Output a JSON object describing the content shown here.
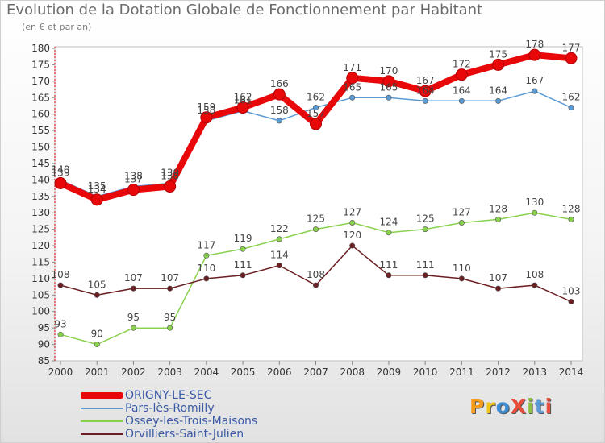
{
  "header": {
    "title": "Evolution de la Dotation Globale de Fonctionnement par Habitant",
    "subtitle": "(en € et par an)"
  },
  "logo": {
    "text": "ProXiti",
    "letters": [
      "P",
      "r",
      "o",
      "X",
      "i",
      "t",
      "i"
    ],
    "colors": [
      "#f59a1c",
      "#f2c319",
      "#3b8fd8",
      "#e94e3a",
      "#8cbf3f",
      "#5a9ad6",
      "#e94e3a"
    ]
  },
  "chart_data": {
    "type": "line",
    "title": "Evolution de la Dotation Globale de Fonctionnement par Habitant",
    "subtitle": "(en € et par an)",
    "xlabel": "",
    "ylabel": "",
    "x": [
      "2000",
      "2001",
      "2002",
      "2003",
      "2004",
      "2005",
      "2006",
      "2007",
      "2008",
      "2009",
      "2010",
      "2011",
      "2012",
      "2013",
      "2014"
    ],
    "ylim": [
      85,
      180
    ],
    "yticks": [
      85,
      90,
      95,
      100,
      105,
      110,
      115,
      120,
      125,
      130,
      135,
      140,
      145,
      150,
      155,
      160,
      165,
      170,
      175,
      180
    ],
    "grid": false,
    "legend_position": "bottom-left",
    "series": [
      {
        "name": "ORIGNY-LE-SEC",
        "color": "#e8080a",
        "values": [
          139,
          134,
          137,
          138,
          159,
          162,
          166,
          157,
          171,
          170,
          167,
          172,
          175,
          178,
          177
        ],
        "labels": [
          "139",
          "134",
          "137",
          "138",
          "159",
          "162",
          "166",
          "157",
          "171",
          "170",
          "167",
          "172",
          "175",
          "178",
          "177"
        ]
      },
      {
        "name": "Pars-lès-Romilly",
        "color": "#5b9bd5",
        "values": [
          140,
          135,
          138,
          139,
          158,
          161,
          158,
          162,
          165,
          165,
          164,
          164,
          164,
          167,
          162
        ],
        "labels": [
          "140",
          "135",
          "138",
          "139",
          "158",
          "161",
          "158",
          "162",
          "165",
          "165",
          "164",
          "164",
          "164",
          "167",
          "162"
        ]
      },
      {
        "name": "Ossey-les-Trois-Maisons",
        "color": "#8ad14e",
        "values": [
          93,
          90,
          95,
          95,
          117,
          119,
          122,
          125,
          127,
          124,
          125,
          127,
          128,
          130,
          128
        ],
        "labels": [
          "93",
          "90",
          "95",
          "95",
          "117",
          "119",
          "122",
          "125",
          "127",
          "124",
          "125",
          "127",
          "128",
          "130",
          "128"
        ]
      },
      {
        "name": "Orvilliers-Saint-Julien",
        "color": "#6b1f22",
        "values": [
          108,
          105,
          107,
          107,
          110,
          111,
          114,
          108,
          120,
          111,
          111,
          110,
          107,
          108,
          103
        ],
        "labels": [
          "108",
          "105",
          "107",
          "107",
          "110",
          "111",
          "114",
          "108",
          "120",
          "111",
          "111",
          "110",
          "107",
          "108",
          "103"
        ]
      }
    ]
  }
}
